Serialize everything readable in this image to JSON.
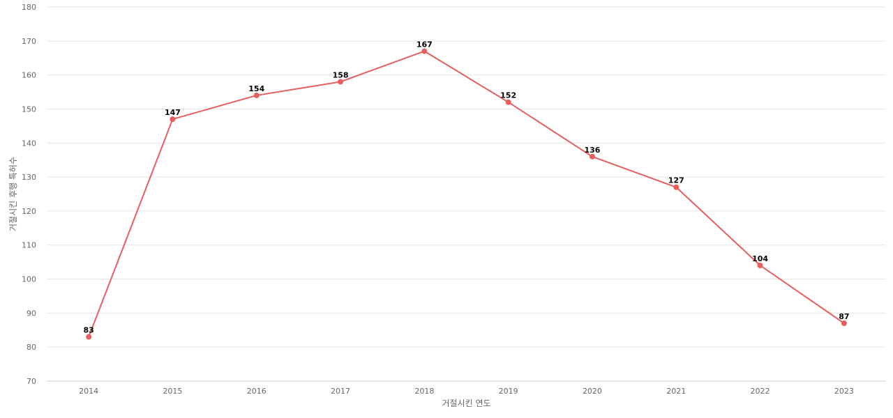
{
  "chart_data": {
    "type": "line",
    "title": "",
    "xlabel": "거절시킨 연도",
    "ylabel": "거절시킨 후행 특허수",
    "categories": [
      "2014",
      "2015",
      "2016",
      "2017",
      "2018",
      "2019",
      "2020",
      "2021",
      "2022",
      "2023"
    ],
    "series": [
      {
        "values": [
          83,
          147,
          154,
          158,
          167,
          152,
          136,
          127,
          104,
          87
        ]
      }
    ],
    "ylim": [
      70,
      180
    ],
    "yticks": [
      70,
      80,
      90,
      100,
      110,
      120,
      130,
      140,
      150,
      160,
      170,
      180
    ],
    "grid": true,
    "data_labels": true,
    "color": "#e85d5d"
  }
}
